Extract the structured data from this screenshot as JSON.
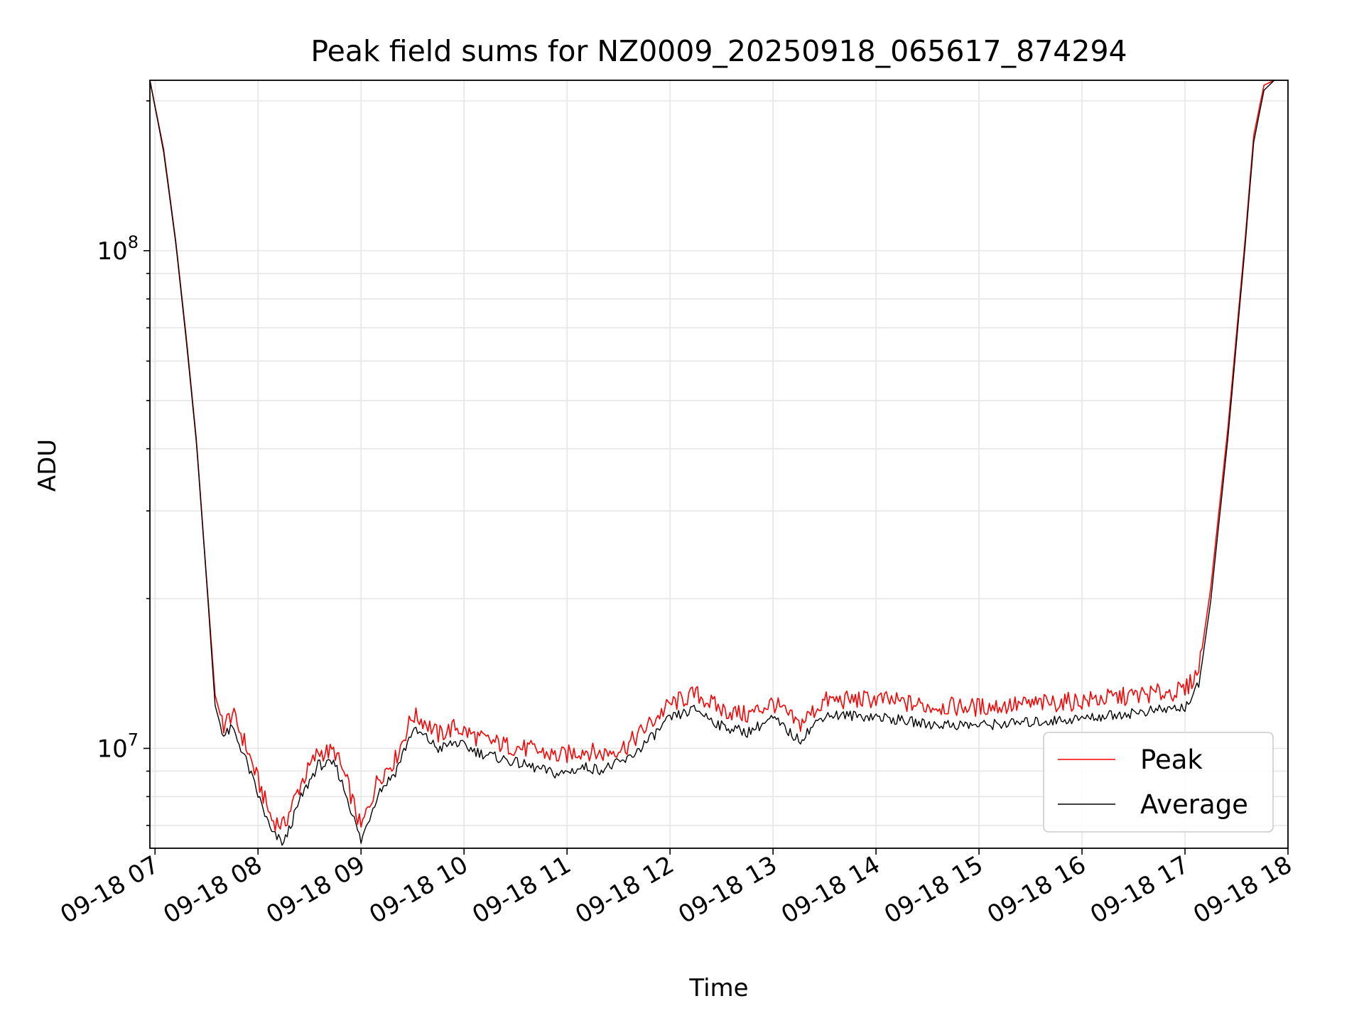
{
  "chart_data": {
    "type": "line",
    "title": "Peak field sums for NZ0009_20250918_065617_874294",
    "xlabel": "Time",
    "ylabel": "ADU",
    "yscale": "log",
    "ylim": [
      6300000,
      220000000
    ],
    "xlim": [
      "2025-09-18 06:57",
      "2025-09-18 18:00"
    ],
    "grid": "on (major and minor)",
    "legend_position": "lower right",
    "x_tick_labels": [
      "09-18 07",
      "09-18 08",
      "09-18 09",
      "09-18 10",
      "09-18 11",
      "09-18 12",
      "09-18 13",
      "09-18 14",
      "09-18 15",
      "09-18 16",
      "09-18 17",
      "09-18 18"
    ],
    "y_tick_labels": [
      {
        "value": 10000000,
        "base": "10",
        "exponent": "7"
      },
      {
        "value": 100000000,
        "base": "10",
        "exponent": "8"
      }
    ],
    "series": [
      {
        "name": "Peak",
        "color": "#ff0000",
        "x": [
          "2025-09-18 06:57",
          "2025-09-18 07:05",
          "2025-09-18 07:12",
          "2025-09-18 07:18",
          "2025-09-18 07:24",
          "2025-09-18 07:30",
          "2025-09-18 07:35",
          "2025-09-18 07:40",
          "2025-09-18 07:45",
          "2025-09-18 07:52",
          "2025-09-18 08:00",
          "2025-09-18 08:08",
          "2025-09-18 08:15",
          "2025-09-18 08:25",
          "2025-09-18 08:35",
          "2025-09-18 08:45",
          "2025-09-18 08:52",
          "2025-09-18 09:00",
          "2025-09-18 09:10",
          "2025-09-18 09:20",
          "2025-09-18 09:30",
          "2025-09-18 09:37",
          "2025-09-18 09:45",
          "2025-09-18 09:55",
          "2025-09-18 10:10",
          "2025-09-18 10:25",
          "2025-09-18 10:40",
          "2025-09-18 10:55",
          "2025-09-18 11:10",
          "2025-09-18 11:20",
          "2025-09-18 11:35",
          "2025-09-18 11:50",
          "2025-09-18 12:00",
          "2025-09-18 12:15",
          "2025-09-18 12:30",
          "2025-09-18 12:45",
          "2025-09-18 13:00",
          "2025-09-18 13:15",
          "2025-09-18 13:30",
          "2025-09-18 14:00",
          "2025-09-18 14:30",
          "2025-09-18 15:00",
          "2025-09-18 15:30",
          "2025-09-18 16:00",
          "2025-09-18 16:30",
          "2025-09-18 16:50",
          "2025-09-18 17:00",
          "2025-09-18 17:08",
          "2025-09-18 17:15",
          "2025-09-18 17:25",
          "2025-09-18 17:35",
          "2025-09-18 17:40",
          "2025-09-18 17:46",
          "2025-09-18 17:52"
        ],
        "y": [
          220000000,
          160000000,
          105000000,
          68000000,
          42000000,
          22000000,
          12800000,
          11000000,
          11600000,
          10200000,
          8500000,
          7100000,
          6900000,
          8400000,
          9700000,
          9700000,
          8400000,
          6800000,
          8600000,
          9400000,
          11500000,
          11200000,
          10500000,
          10900000,
          10300000,
          10000000,
          9800000,
          9500000,
          9800000,
          9600000,
          10000000,
          11200000,
          12100000,
          12700000,
          11800000,
          11500000,
          12200000,
          11000000,
          12300000,
          12400000,
          12000000,
          11950000,
          12100000,
          12300000,
          12600000,
          12800000,
          12900000,
          14200000,
          21000000,
          44000000,
          105000000,
          170000000,
          215000000,
          220000000
        ]
      },
      {
        "name": "Average",
        "color": "#000000",
        "x": [
          "2025-09-18 06:57",
          "2025-09-18 07:05",
          "2025-09-18 07:12",
          "2025-09-18 07:18",
          "2025-09-18 07:24",
          "2025-09-18 07:30",
          "2025-09-18 07:35",
          "2025-09-18 07:40",
          "2025-09-18 07:45",
          "2025-09-18 07:52",
          "2025-09-18 08:00",
          "2025-09-18 08:08",
          "2025-09-18 08:15",
          "2025-09-18 08:25",
          "2025-09-18 08:35",
          "2025-09-18 08:45",
          "2025-09-18 08:52",
          "2025-09-18 09:00",
          "2025-09-18 09:10",
          "2025-09-18 09:20",
          "2025-09-18 09:30",
          "2025-09-18 09:37",
          "2025-09-18 09:45",
          "2025-09-18 09:55",
          "2025-09-18 10:10",
          "2025-09-18 10:25",
          "2025-09-18 10:40",
          "2025-09-18 10:55",
          "2025-09-18 11:10",
          "2025-09-18 11:20",
          "2025-09-18 11:35",
          "2025-09-18 11:50",
          "2025-09-18 12:00",
          "2025-09-18 12:15",
          "2025-09-18 12:30",
          "2025-09-18 12:45",
          "2025-09-18 13:00",
          "2025-09-18 13:15",
          "2025-09-18 13:30",
          "2025-09-18 14:00",
          "2025-09-18 14:30",
          "2025-09-18 15:00",
          "2025-09-18 15:30",
          "2025-09-18 16:00",
          "2025-09-18 16:30",
          "2025-09-18 16:50",
          "2025-09-18 17:00",
          "2025-09-18 17:08",
          "2025-09-18 17:15",
          "2025-09-18 17:25",
          "2025-09-18 17:35",
          "2025-09-18 17:40",
          "2025-09-18 17:46",
          "2025-09-18 17:52"
        ],
        "y": [
          220000000,
          158000000,
          104000000,
          67000000,
          41500000,
          21800000,
          12200000,
          10500000,
          10900000,
          9600000,
          8000000,
          6700000,
          6400000,
          7900000,
          9200000,
          9200000,
          7900000,
          6450000,
          8100000,
          8900000,
          10800000,
          10500000,
          9900000,
          10200000,
          9700000,
          9400000,
          9100000,
          8800000,
          9100000,
          9000000,
          9400000,
          10500000,
          11400000,
          11900000,
          11000000,
          10700000,
          11400000,
          10300000,
          11600000,
          11500000,
          11100000,
          11050000,
          11200000,
          11400000,
          11700000,
          11900000,
          12000000,
          13300000,
          19800000,
          42000000,
          102000000,
          165000000,
          210000000,
          220000000
        ]
      }
    ]
  }
}
